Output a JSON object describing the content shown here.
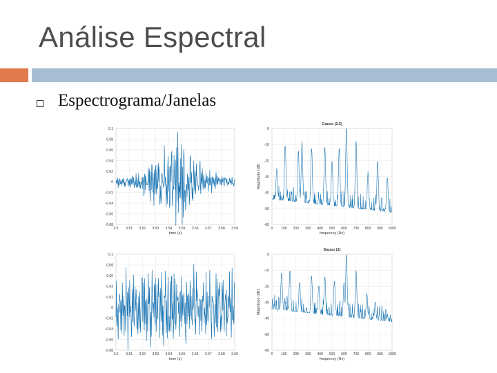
{
  "slide": {
    "title": "Análise Espectral",
    "bullet": "Espectrograma/Janelas"
  },
  "colors": {
    "signal": "#1f77b4",
    "accent_orange": "#e07a4d",
    "accent_blue": "#a7bdd4"
  },
  "chart_data": [
    {
      "type": "line",
      "title": "",
      "xlabel": "time (s)",
      "ylabel": "",
      "xlim": [
        3.5,
        3.6
      ],
      "ylim": [
        -0.08,
        0.1
      ],
      "xticks": [
        "3.5",
        "3.51",
        "3.52",
        "3.53",
        "3.54",
        "3.55",
        "3.56",
        "3.57",
        "3.58",
        "3.59"
      ],
      "yticks": [
        "0.1",
        "0.08",
        "0.06",
        "0.04",
        "0.02",
        "0",
        "-0.02",
        "-0.04",
        "-0.06",
        "-0.08"
      ],
      "envelope": "gaussian",
      "amplitude": 0.07,
      "grid": true
    },
    {
      "type": "line",
      "title": "Gauss (2.5)",
      "xlabel": "frequency (Hz)",
      "ylabel": "Magnitude (dB)",
      "xlim": [
        0,
        1000
      ],
      "ylim": [
        -60,
        0
      ],
      "xticks": [
        "0",
        "100",
        "200",
        "300",
        "400",
        "500",
        "600",
        "700",
        "800",
        "900",
        "1000"
      ],
      "yticks": [
        "0",
        "-10",
        "-20",
        "-30",
        "-40",
        "-50",
        "-60"
      ],
      "peaks": [
        {
          "x": 40,
          "y": -25
        },
        {
          "x": 110,
          "y": -10
        },
        {
          "x": 220,
          "y": -14
        },
        {
          "x": 250,
          "y": -8
        },
        {
          "x": 330,
          "y": -12
        },
        {
          "x": 440,
          "y": -11
        },
        {
          "x": 500,
          "y": -20
        },
        {
          "x": 560,
          "y": -12
        },
        {
          "x": 620,
          "y": 0
        },
        {
          "x": 700,
          "y": -7
        },
        {
          "x": 800,
          "y": -28
        },
        {
          "x": 880,
          "y": -20
        },
        {
          "x": 960,
          "y": -30
        }
      ],
      "floor": -45,
      "grid": true
    },
    {
      "type": "line",
      "title": "",
      "xlabel": "time (s)",
      "ylabel": "",
      "xlim": [
        3.5,
        3.6
      ],
      "ylim": [
        -0.08,
        0.1
      ],
      "xticks": [
        "3.5",
        "3.51",
        "3.52",
        "3.53",
        "3.54",
        "3.55",
        "3.56",
        "3.57",
        "3.58",
        "3.59"
      ],
      "yticks": [
        "0.1",
        "0.08",
        "0.06",
        "0.04",
        "0.02",
        "0",
        "-0.02",
        "-0.04",
        "-0.06",
        "-0.08"
      ],
      "envelope": "flat",
      "amplitude": 0.06,
      "grid": true
    },
    {
      "type": "line",
      "title": "Gauss (1)",
      "xlabel": "frequency (Hz)",
      "ylabel": "Magnitude (dB)",
      "xlim": [
        0,
        1000
      ],
      "ylim": [
        -60,
        0
      ],
      "xticks": [
        "0",
        "100",
        "200",
        "300",
        "400",
        "500",
        "600",
        "700",
        "800",
        "900",
        "1000"
      ],
      "yticks": [
        "0",
        "-10",
        "-20",
        "-30",
        "-40",
        "-50",
        "-60"
      ],
      "peaks": [
        {
          "x": 80,
          "y": -12
        },
        {
          "x": 150,
          "y": -10
        },
        {
          "x": 230,
          "y": -18
        },
        {
          "x": 330,
          "y": -14
        },
        {
          "x": 390,
          "y": -20
        },
        {
          "x": 440,
          "y": -14
        },
        {
          "x": 520,
          "y": -17
        },
        {
          "x": 600,
          "y": -18
        },
        {
          "x": 620,
          "y": 0
        },
        {
          "x": 700,
          "y": -10
        },
        {
          "x": 790,
          "y": -24
        },
        {
          "x": 860,
          "y": -30
        },
        {
          "x": 960,
          "y": -38
        }
      ],
      "floor": -35,
      "grid": true
    }
  ]
}
